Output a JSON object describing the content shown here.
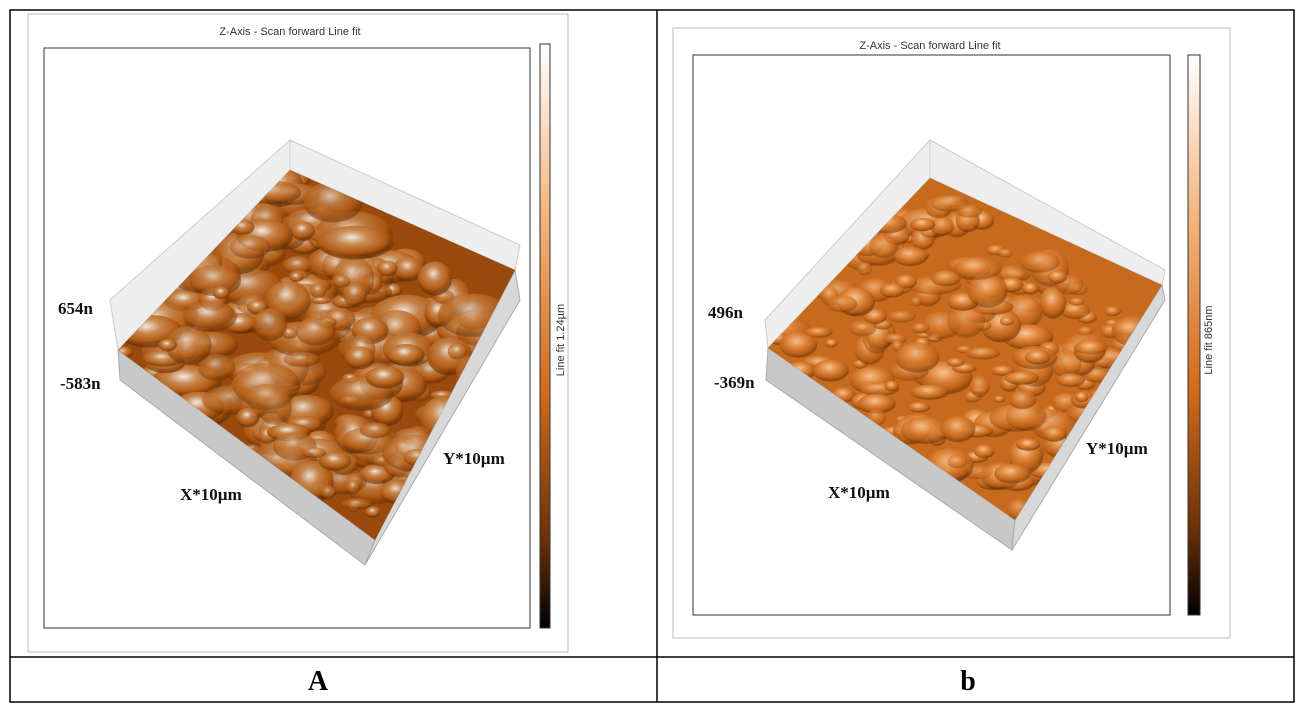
{
  "panels": [
    {
      "title": "Z-Axis - Scan forward   Line fit",
      "z_max": "654n",
      "z_min": "-583n",
      "x_label": "X*10µm",
      "y_label": "Y*10µm",
      "colorbar_label": "Line fit 1.24µm",
      "caption": "A"
    },
    {
      "title": "Z-Axis - Scan forward   Line fit",
      "z_max": "496n",
      "z_min": "-369n",
      "x_label": "X*10µm",
      "y_label": "Y*10µm",
      "colorbar_label": "Line fit 865nm",
      "caption": "b"
    }
  ]
}
